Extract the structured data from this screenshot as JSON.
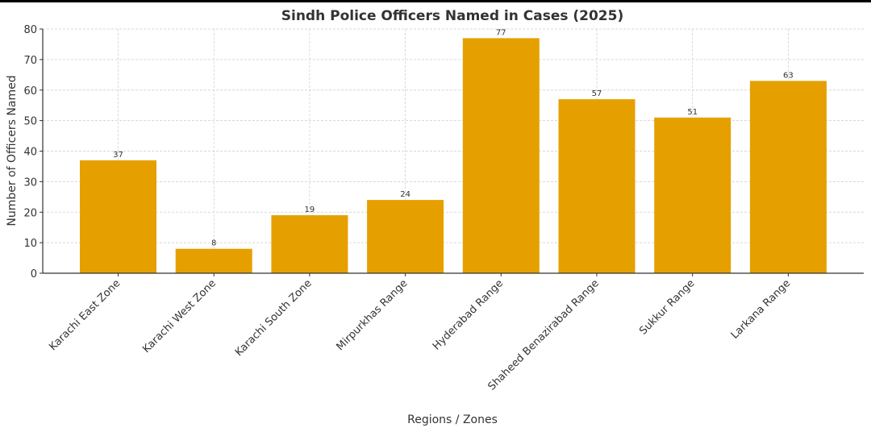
{
  "chart_data": {
    "type": "bar",
    "title": "Sindh Police Officers Named in Cases (2025)",
    "xlabel": "Regions / Zones",
    "ylabel": "Number of Officers Named",
    "categories": [
      "Karachi East Zone",
      "Karachi West Zone",
      "Karachi South Zone",
      "Mirpurkhas Range",
      "Hyderabad Range",
      "Shaheed Benazirabad Range",
      "Sukkur Range",
      "Larkana Range"
    ],
    "values": [
      37,
      8,
      19,
      24,
      77,
      57,
      51,
      63
    ],
    "ylim": [
      0,
      80
    ],
    "yticks": [
      0,
      10,
      20,
      30,
      40,
      50,
      60,
      70,
      80
    ],
    "grid": true,
    "bar_color": "#E5A000",
    "legend": "none"
  }
}
